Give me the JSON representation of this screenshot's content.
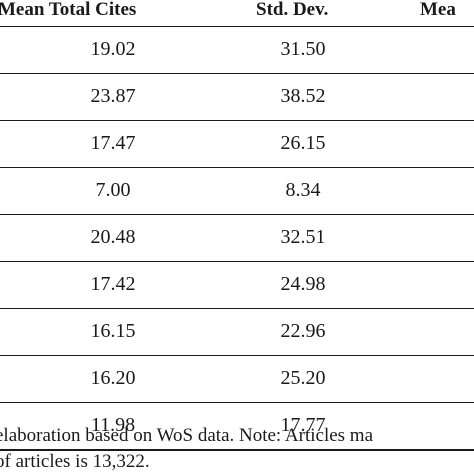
{
  "table": {
    "headers": [
      "Mean Total Cites",
      "Std. Dev.",
      "Mea"
    ],
    "rows": [
      {
        "mean": "19.02",
        "sd": "31.50"
      },
      {
        "mean": "23.87",
        "sd": "38.52"
      },
      {
        "mean": "17.47",
        "sd": "26.15"
      },
      {
        "mean": "7.00",
        "sd": "8.34"
      },
      {
        "mean": "20.48",
        "sd": "32.51"
      },
      {
        "mean": "17.42",
        "sd": "24.98"
      },
      {
        "mean": "16.15",
        "sd": "22.96"
      },
      {
        "mean": "16.20",
        "sd": "25.20"
      },
      {
        "mean": "11.98",
        "sd": "17.77"
      }
    ]
  },
  "footnote": {
    "line1": "elaboration based on WoS data. Note: Articles ma",
    "line2": "of articles is 13,322."
  }
}
